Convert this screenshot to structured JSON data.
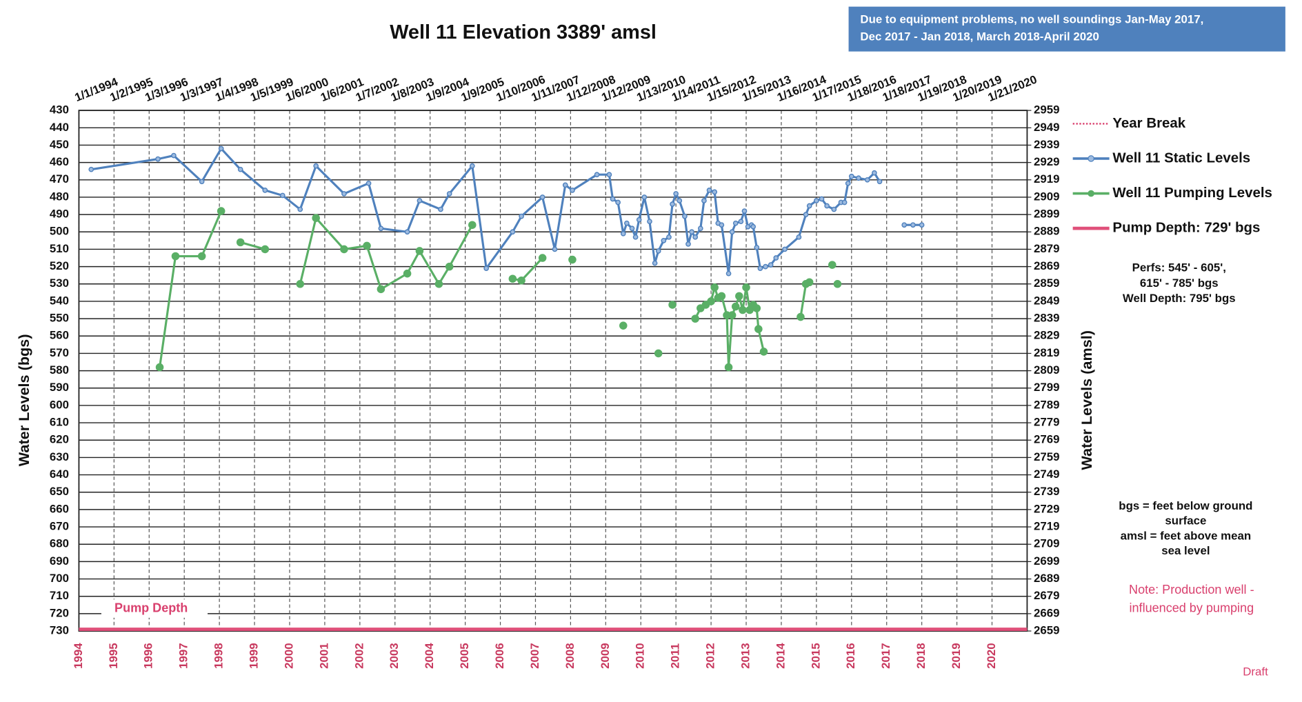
{
  "chart_data": {
    "type": "line",
    "title": "Well 11 Elevation 3389' amsl",
    "notice": [
      "Due to equipment problems, no well soundings Jan-May 2017,",
      "Dec 2017 - Jan 2018, March 2018-April 2020"
    ],
    "y_label": "Water Levels (bgs)",
    "y2_label": "Water Levels (amsl)",
    "xlim": [
      1994,
      2021
    ],
    "xticks": [
      1994,
      1995,
      1996,
      1997,
      1998,
      1999,
      2000,
      2001,
      2002,
      2003,
      2004,
      2005,
      2006,
      2007,
      2008,
      2009,
      2010,
      2011,
      2012,
      2013,
      2014,
      2015,
      2016,
      2017,
      2018,
      2019,
      2020
    ],
    "top_labels": [
      "1/1/1994",
      "1/2/1995",
      "1/3/1996",
      "1/3/1997",
      "1/4/1998",
      "1/5/1999",
      "1/6/2000",
      "1/6/2001",
      "1/7/2002",
      "1/8/2003",
      "1/9/2004",
      "1/9/2005",
      "1/10/2006",
      "1/11/2007",
      "1/12/2008",
      "1/12/2009",
      "1/13/2010",
      "1/14/2011",
      "1/15/2012",
      "1/15/2013",
      "1/16/2014",
      "1/17/2015",
      "1/18/2016",
      "1/18/2017",
      "1/19/2018",
      "1/20/2019",
      "1/21/2020"
    ],
    "ylim": [
      430,
      730
    ],
    "yticks": [
      430,
      440,
      450,
      460,
      470,
      480,
      490,
      500,
      510,
      520,
      530,
      540,
      550,
      560,
      570,
      580,
      590,
      600,
      610,
      620,
      630,
      640,
      650,
      660,
      670,
      680,
      690,
      700,
      710,
      720,
      730
    ],
    "y2lim": [
      2959,
      2659
    ],
    "y2ticks": [
      2959,
      2949,
      2939,
      2929,
      2919,
      2909,
      2899,
      2889,
      2879,
      2869,
      2859,
      2849,
      2839,
      2829,
      2819,
      2809,
      2799,
      2789,
      2779,
      2769,
      2759,
      2749,
      2739,
      2729,
      2719,
      2709,
      2699,
      2689,
      2679,
      2669,
      2659
    ],
    "grid": true,
    "year_break": {
      "name": "Year Break",
      "color": "#d9406e"
    },
    "series": [
      {
        "name": "Well 11 Static Levels",
        "color": "#4f81bd",
        "x": [
          1994.35,
          1996.25,
          1996.7,
          1997.5,
          1998.05,
          1998.6,
          1999.3,
          1999.8,
          2000.3,
          2000.75,
          2001.55,
          2002.25,
          2002.6,
          2003.35,
          2003.7,
          2004.3,
          2004.55,
          2005.2,
          2005.6,
          2006.35,
          2006.6,
          2007.2,
          2007.55,
          2007.85,
          2008.05,
          2008.75,
          2009.1,
          2009.2,
          2009.35,
          2009.5,
          2009.6,
          2009.75,
          2009.85,
          2009.95,
          2010.1,
          2010.25,
          2010.4,
          2010.5,
          2010.65,
          2010.8,
          2010.9,
          2011.0,
          2011.1,
          2011.25,
          2011.35,
          2011.45,
          2011.55,
          2011.7,
          2011.8,
          2011.95,
          2012.1,
          2012.2,
          2012.3,
          2012.5,
          2012.6,
          2012.7,
          2012.85,
          2012.95,
          2013.05,
          2013.15,
          2013.2,
          2013.3,
          2013.4,
          2013.55,
          2013.7,
          2013.85,
          2014.1,
          2014.5,
          2014.7,
          2014.8,
          2015.0,
          2015.15,
          2015.3,
          2015.5,
          2015.7,
          2015.8,
          2015.9,
          2016.0,
          2016.2,
          2016.45,
          2016.65,
          2016.8,
          null,
          2017.5,
          2017.75,
          2018.0
        ],
        "values": [
          464,
          458,
          456,
          471,
          452,
          464,
          476,
          479,
          487,
          462,
          478,
          472,
          498,
          500,
          482,
          487,
          478,
          462,
          521,
          500,
          491,
          480,
          510,
          473,
          476,
          467,
          467,
          481,
          483,
          501,
          495,
          498,
          503,
          493,
          480,
          494,
          518,
          511,
          505,
          503,
          484,
          478,
          482,
          491,
          507,
          500,
          503,
          498,
          482,
          476,
          477,
          495,
          496,
          524,
          500,
          495,
          494,
          488,
          497,
          496,
          497,
          509,
          521,
          520,
          519,
          515,
          510,
          503,
          490,
          485,
          482,
          481,
          485,
          487,
          483,
          483,
          472,
          468,
          469,
          470,
          466,
          471,
          null,
          496,
          496,
          496
        ]
      },
      {
        "name": "Well 11 Pumping Levels",
        "color": "#5aaf66",
        "x": [
          1996.3,
          1996.75,
          1997.5,
          1998.05,
          null,
          1998.6,
          1999.3,
          null,
          2000.3,
          2000.75,
          2001.55,
          2002.2,
          2002.6,
          2003.35,
          2003.7,
          2004.25,
          2004.55,
          2005.2,
          null,
          2006.35,
          2006.6,
          2007.2,
          null,
          2008.05,
          null,
          2009.5,
          null,
          2010.5,
          null,
          2010.9,
          null,
          2011.55,
          2011.7,
          2011.85,
          2012.0,
          2012.1,
          2012.2,
          2012.3,
          2012.45,
          2012.5,
          2012.6,
          2012.7,
          2012.8,
          2012.9,
          2013.0,
          2013.1,
          2013.2,
          2013.3,
          2013.35,
          2013.5,
          null,
          2014.55,
          2014.7,
          2014.8,
          null,
          2015.45,
          null,
          2015.6
        ],
        "values": [
          578,
          514,
          514,
          488,
          null,
          506,
          510,
          null,
          530,
          492,
          510,
          508,
          533,
          524,
          511,
          530,
          520,
          496,
          null,
          527,
          528,
          515,
          null,
          516,
          null,
          554,
          null,
          570,
          null,
          542,
          null,
          550,
          544,
          542,
          540,
          532,
          538,
          537,
          548,
          578,
          548,
          543,
          537,
          545,
          532,
          545,
          542,
          544,
          556,
          569,
          null,
          549,
          530,
          529,
          null,
          519,
          null,
          530
        ]
      },
      {
        "name": "Pump Depth: 729' bgs",
        "color": "#e0507a",
        "x": [
          1994,
          2021
        ],
        "values": [
          729,
          729
        ]
      }
    ],
    "pump_label": "Pump Depth",
    "perfs": [
      "Perfs: 545' - 605',",
      "615' - 785' bgs",
      "Well Depth: 795' bgs"
    ],
    "definitions": [
      "bgs = feet below ground",
      "surface",
      "amsl = feet above mean",
      "sea level"
    ],
    "note": [
      "Note: Production well -",
      "influenced by pumping"
    ],
    "draft": "Draft"
  }
}
